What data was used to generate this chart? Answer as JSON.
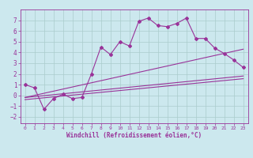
{
  "title": "",
  "xlabel": "Windchill (Refroidissement éolien,°C)",
  "ylabel": "",
  "background_color": "#cce8ee",
  "line_color": "#993399",
  "grid_color": "#aacccc",
  "xlim": [
    -0.5,
    23.5
  ],
  "ylim": [
    -2.6,
    8.0
  ],
  "xticks": [
    0,
    1,
    2,
    3,
    4,
    5,
    6,
    7,
    8,
    9,
    10,
    11,
    12,
    13,
    14,
    15,
    16,
    17,
    18,
    19,
    20,
    21,
    22,
    23
  ],
  "yticks": [
    -2,
    -1,
    0,
    1,
    2,
    3,
    4,
    5,
    6,
    7
  ],
  "series1_x": [
    0,
    1,
    2,
    3,
    4,
    5,
    6,
    7,
    8,
    9,
    10,
    11,
    12,
    13,
    14,
    15,
    16,
    17,
    18,
    19,
    20,
    21,
    22,
    23
  ],
  "series1_y": [
    1.0,
    0.7,
    -1.3,
    -0.3,
    0.1,
    -0.3,
    -0.2,
    2.0,
    4.5,
    3.8,
    5.0,
    4.6,
    6.9,
    7.2,
    6.5,
    6.4,
    6.7,
    7.2,
    5.3,
    5.3,
    4.4,
    3.9,
    3.3,
    2.6
  ],
  "series2_x": [
    0,
    23
  ],
  "series2_y": [
    -0.2,
    4.3
  ],
  "series3_x": [
    0,
    23
  ],
  "series3_y": [
    -0.2,
    1.8
  ],
  "series4_x": [
    0,
    23
  ],
  "series4_y": [
    -0.4,
    1.55
  ]
}
